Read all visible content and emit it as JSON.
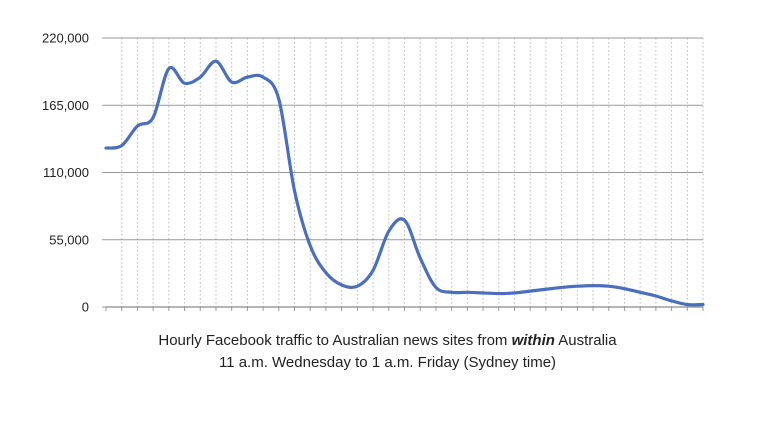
{
  "chart_data": {
    "type": "line",
    "title_parts": {
      "before": "Hourly Facebook traffic to Australian news sites from ",
      "emphasis": "within",
      "after": " Australia"
    },
    "subtitle": "11 a.m. Wednesday to 1 a.m. Friday (Sydney time)",
    "xlabel": "",
    "ylabel": "",
    "ylim": [
      0,
      220000
    ],
    "y_ticks": [
      0,
      55000,
      110000,
      165000,
      220000
    ],
    "y_tick_labels": [
      "0",
      "55,000",
      "110,000",
      "165,000",
      "220,000"
    ],
    "x_ticks_count": 39,
    "x_tick_labels": [],
    "grid": {
      "horizontal": "solid",
      "vertical": "dotted"
    },
    "legend": "none",
    "series": [
      {
        "color": "#4a6fbf",
        "x": [
          0,
          1,
          2,
          3,
          4,
          5,
          6,
          7,
          8,
          9,
          10,
          11,
          12,
          13,
          14,
          15,
          16,
          17,
          18,
          19,
          20,
          21,
          22,
          23,
          24,
          25,
          26,
          27,
          28,
          29,
          30,
          31,
          32,
          33,
          34,
          35,
          36,
          37,
          38
        ],
        "values": [
          130000,
          132000,
          148000,
          155000,
          195000,
          183000,
          188000,
          201000,
          184000,
          188000,
          188000,
          170000,
          95000,
          50000,
          28000,
          18000,
          17000,
          30000,
          62000,
          71000,
          40000,
          16000,
          12000,
          12000,
          11500,
          11000,
          11500,
          13000,
          14500,
          16000,
          17000,
          17500,
          17000,
          15000,
          12000,
          9000,
          5000,
          2000,
          2000
        ]
      }
    ]
  }
}
